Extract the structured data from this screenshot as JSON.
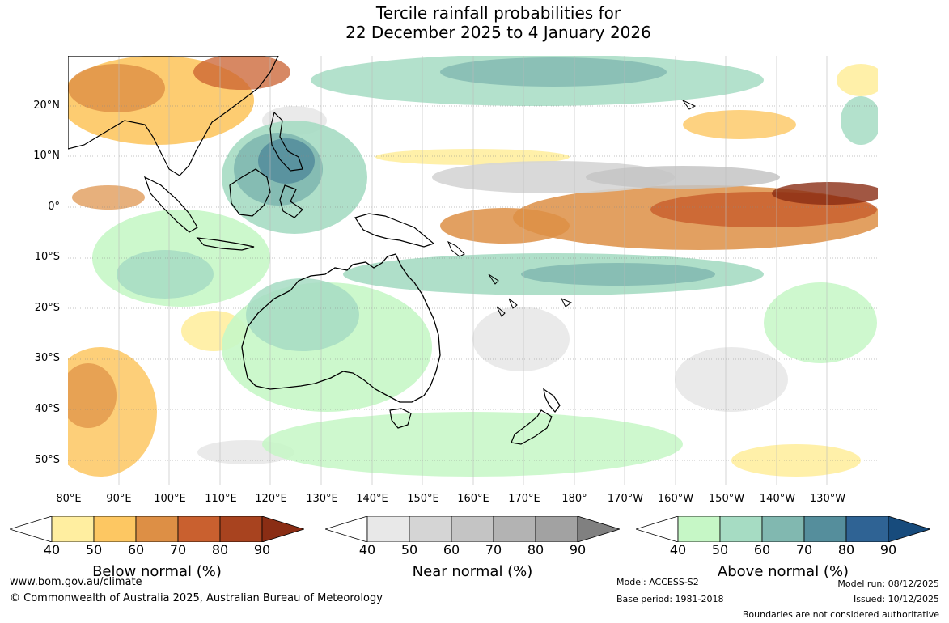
{
  "title": {
    "line1": "Tercile rainfall probabilities for",
    "line2": "22 December 2025 to 4 January 2026"
  },
  "map": {
    "lat_labels": [
      "20°N",
      "10°N",
      "0°",
      "10°S",
      "20°S",
      "30°S",
      "40°S",
      "50°S"
    ],
    "lon_labels": [
      "80°E",
      "90°E",
      "100°E",
      "110°E",
      "120°E",
      "130°E",
      "140°E",
      "150°E",
      "160°E",
      "170°E",
      "180°",
      "170°W",
      "160°W",
      "150°W",
      "140°W",
      "130°W"
    ]
  },
  "legends": [
    {
      "title": "Below normal (%)",
      "ticks": [
        "40",
        "50",
        "60",
        "70",
        "80",
        "90"
      ],
      "colors": [
        "#ffffff",
        "#ffeea0",
        "#fdc762",
        "#dd8f45",
        "#c9602f",
        "#a8431f",
        "#8a2d14"
      ]
    },
    {
      "title": "Near normal (%)",
      "ticks": [
        "40",
        "50",
        "60",
        "70",
        "80",
        "90"
      ],
      "colors": [
        "#ffffff",
        "#e8e8e8",
        "#d5d5d5",
        "#c4c4c4",
        "#b3b3b3",
        "#a2a2a2",
        "#808080"
      ]
    },
    {
      "title": "Above normal (%)",
      "ticks": [
        "40",
        "50",
        "60",
        "70",
        "80",
        "90"
      ],
      "colors": [
        "#ffffff",
        "#c6f7c6",
        "#a6dcc3",
        "#81b8b0",
        "#558e9c",
        "#2f6394",
        "#174b7c"
      ]
    }
  ],
  "footer": {
    "website": "www.bom.gov.au/climate",
    "copyright": "© Commonwealth of Australia 2025, Australian Bureau of Meteorology",
    "model": "Model: ACCESS-S2",
    "base_period": "Base period: 1981-2018",
    "model_run": "Model run: 08/12/2025",
    "issued": "Issued: 10/12/2025",
    "disclaimer": "Boundaries are not considered authoritative"
  }
}
